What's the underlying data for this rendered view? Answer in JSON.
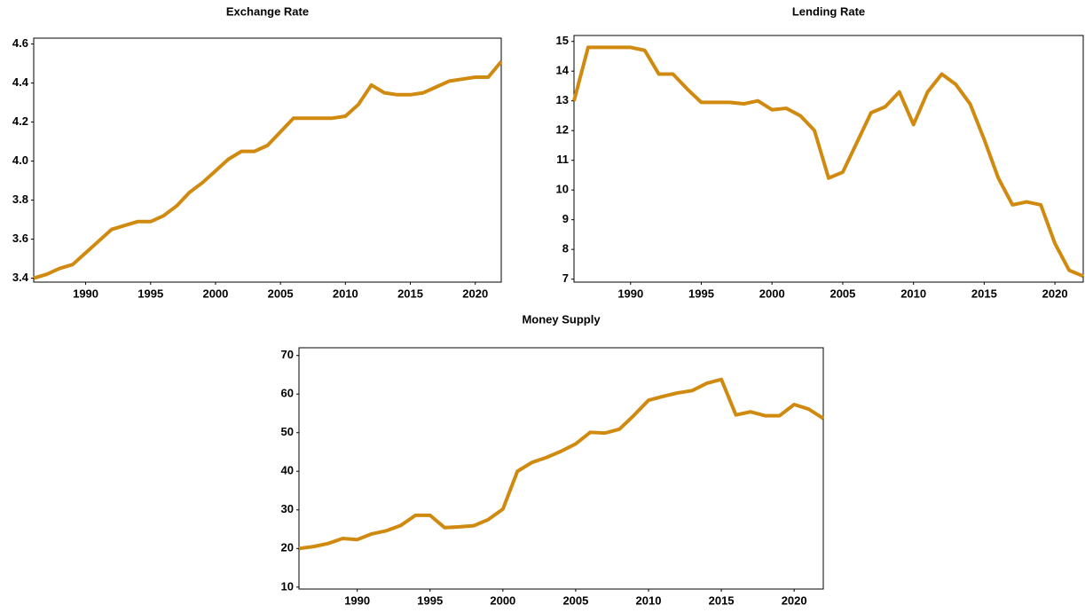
{
  "chart_data": [
    {
      "type": "line",
      "title": "Exchange Rate",
      "x": [
        1986,
        1987,
        1988,
        1989,
        1990,
        1991,
        1992,
        1993,
        1994,
        1995,
        1996,
        1997,
        1998,
        1999,
        2000,
        2001,
        2002,
        2003,
        2004,
        2005,
        2006,
        2007,
        2008,
        2009,
        2010,
        2011,
        2012,
        2013,
        2014,
        2015,
        2016,
        2017,
        2018,
        2019,
        2020,
        2021,
        2022
      ],
      "series": [
        {
          "name": "Exchange Rate",
          "color": "#d08a0f",
          "values": [
            3.4,
            3.42,
            3.45,
            3.47,
            3.53,
            3.59,
            3.65,
            3.67,
            3.69,
            3.69,
            3.72,
            3.77,
            3.84,
            3.89,
            3.95,
            4.01,
            4.05,
            4.05,
            4.08,
            4.15,
            4.22,
            4.22,
            4.22,
            4.22,
            4.23,
            4.29,
            4.39,
            4.35,
            4.34,
            4.34,
            4.35,
            4.38,
            4.41,
            4.42,
            4.43,
            4.43,
            4.51
          ]
        }
      ],
      "xlim": [
        1986,
        2022
      ],
      "xticks": [
        1990,
        1995,
        2000,
        2005,
        2010,
        2015,
        2020
      ],
      "ylim": [
        3.38,
        4.63
      ],
      "yticks": [
        3.4,
        3.6,
        3.8,
        {
          "value": 4,
          "label": "4.0"
        },
        4.2,
        4.4,
        4.6
      ]
    },
    {
      "type": "line",
      "title": "Lending Rate",
      "x": [
        1986,
        1987,
        1988,
        1989,
        1990,
        1991,
        1992,
        1993,
        1994,
        1995,
        1996,
        1997,
        1998,
        1999,
        2000,
        2001,
        2002,
        2003,
        2004,
        2005,
        2006,
        2007,
        2008,
        2009,
        2010,
        2011,
        2012,
        2013,
        2014,
        2015,
        2016,
        2017,
        2018,
        2019,
        2020,
        2021,
        2022
      ],
      "series": [
        {
          "name": "Lending Rate",
          "color": "#d08a0f",
          "values": [
            13.0,
            14.8,
            14.8,
            14.8,
            14.8,
            14.7,
            13.9,
            13.9,
            13.4,
            12.95,
            12.95,
            12.95,
            12.9,
            13.0,
            12.7,
            12.75,
            12.5,
            12.0,
            10.4,
            10.6,
            11.6,
            12.6,
            12.8,
            13.3,
            12.2,
            13.3,
            13.9,
            13.55,
            12.9,
            11.7,
            10.4,
            9.5,
            9.6,
            9.5,
            8.2,
            7.3,
            7.1
          ]
        }
      ],
      "xlim": [
        1986,
        2022
      ],
      "xticks": [
        1990,
        1995,
        2000,
        2005,
        2010,
        2015,
        2020
      ],
      "ylim": [
        6.9,
        15.2
      ],
      "yticks": [
        7,
        8,
        9,
        10,
        11,
        12,
        13,
        14,
        15
      ]
    },
    {
      "type": "line",
      "title": "Money Supply",
      "x": [
        1986,
        1987,
        1988,
        1989,
        1990,
        1991,
        1992,
        1993,
        1994,
        1995,
        1996,
        1997,
        1998,
        1999,
        2000,
        2001,
        2002,
        2003,
        2004,
        2005,
        2006,
        2007,
        2008,
        2009,
        2010,
        2011,
        2012,
        2013,
        2014,
        2015,
        2016,
        2017,
        2018,
        2019,
        2020,
        2021,
        2022
      ],
      "series": [
        {
          "name": "Money Supply",
          "color": "#d08a0f",
          "values": [
            20,
            20.5,
            21.3,
            22.6,
            22.3,
            23.8,
            24.6,
            26,
            28.6,
            28.6,
            25.4,
            25.6,
            25.9,
            27.5,
            30.2,
            40,
            42.3,
            43.6,
            45.2,
            47.1,
            50.1,
            49.9,
            50.9,
            54.5,
            58.4,
            59.4,
            60.3,
            60.9,
            62.8,
            63.8,
            54.6,
            55.4,
            54.4,
            54.4,
            57.3,
            56.1,
            53.7
          ]
        }
      ],
      "xlim": [
        1986,
        2022
      ],
      "xticks": [
        1990,
        1995,
        2000,
        2005,
        2010,
        2015,
        2020
      ],
      "ylim": [
        9.5,
        72
      ],
      "yticks": [
        10,
        20,
        30,
        40,
        50,
        60,
        70
      ]
    }
  ]
}
